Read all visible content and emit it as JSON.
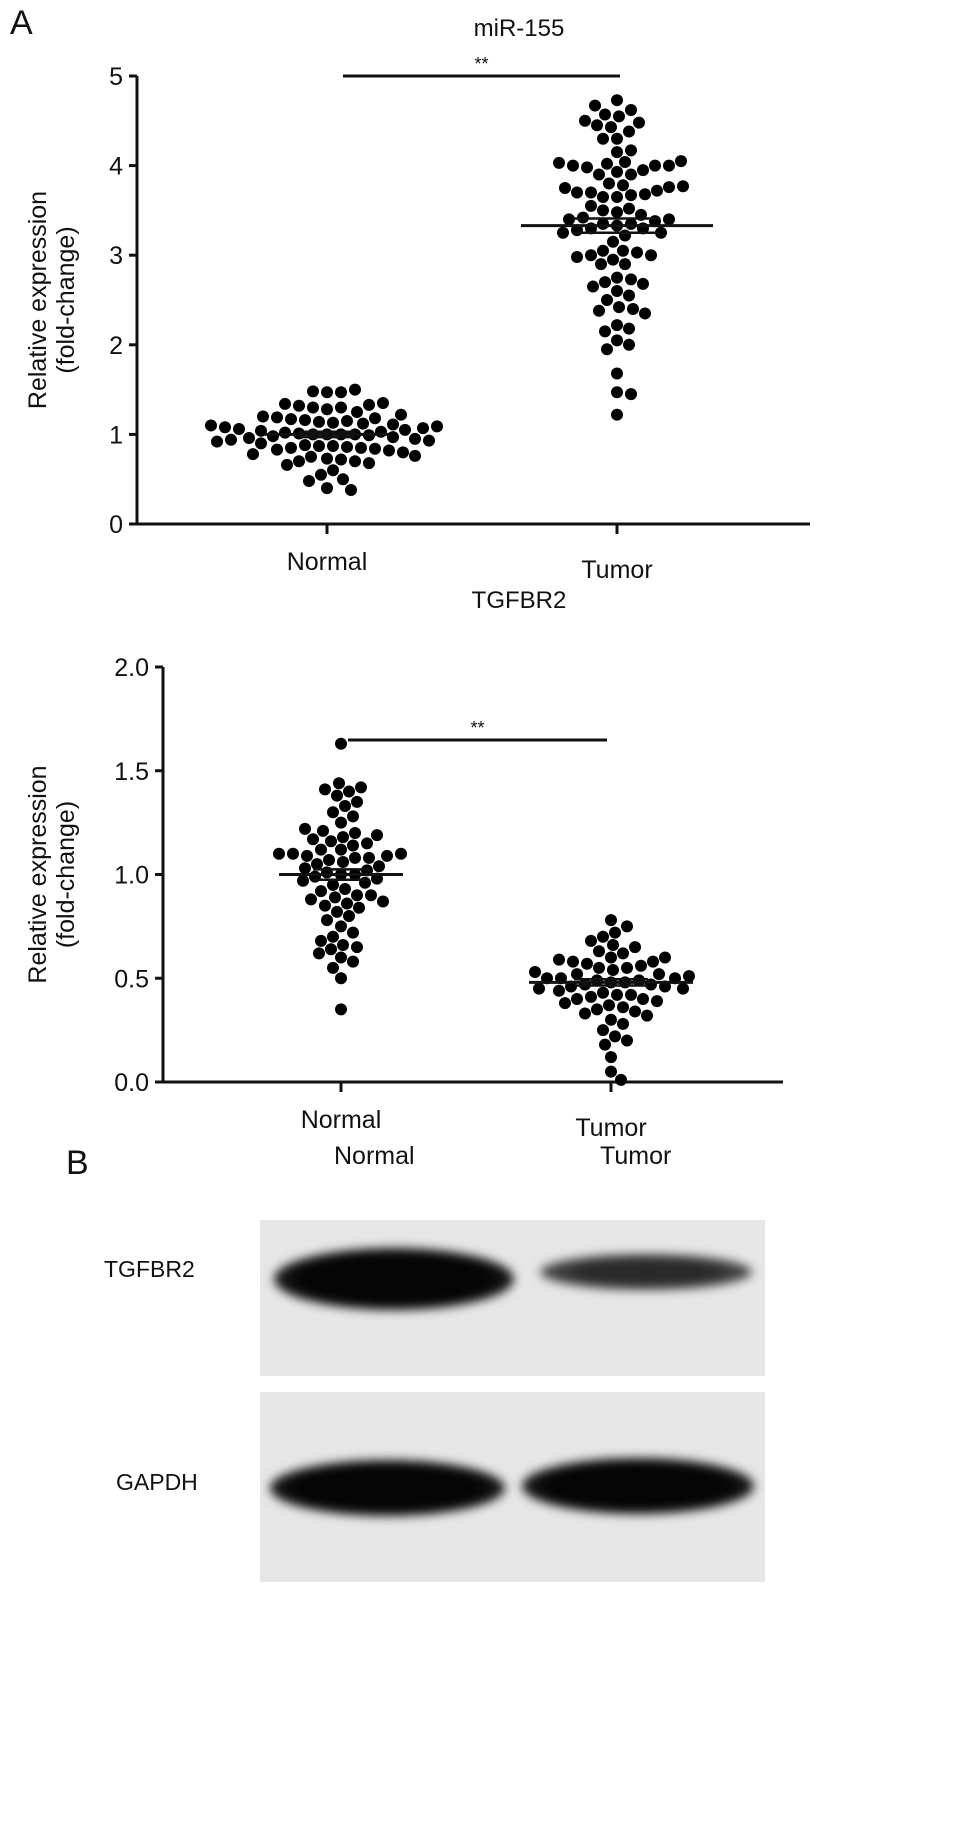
{
  "panel_a_label": "A",
  "panel_b_label": "B",
  "chart_data": [
    {
      "type": "scatter",
      "subtype": "beeswarm",
      "title": "miR-155",
      "xlabel": "",
      "ylabel_line1": "Relative expression",
      "ylabel_line2": "(fold-change)",
      "categories": [
        "Normal",
        "Tumor"
      ],
      "ylim": [
        0,
        5
      ],
      "yticks": [
        0,
        1,
        2,
        3,
        4,
        5
      ],
      "ytick_labels": [
        "0",
        "1",
        "2",
        "3",
        "4",
        "5"
      ],
      "significance": "**",
      "series": [
        {
          "name": "Normal",
          "mean": 1.0,
          "sem": 0.03,
          "values": [
            1.5,
            1.48,
            1.47,
            1.47,
            1.35,
            1.34,
            1.33,
            1.32,
            1.3,
            1.3,
            1.28,
            1.25,
            1.22,
            1.2,
            1.19,
            1.18,
            1.17,
            1.16,
            1.15,
            1.14,
            1.13,
            1.12,
            1.11,
            1.1,
            1.09,
            1.08,
            1.07,
            1.06,
            1.05,
            1.04,
            1.03,
            1.02,
            1.01,
            1.0,
            1.0,
            1.0,
            1.0,
            0.99,
            0.98,
            0.97,
            0.96,
            0.95,
            0.94,
            0.93,
            0.92,
            0.9,
            0.88,
            0.87,
            0.87,
            0.86,
            0.85,
            0.85,
            0.84,
            0.83,
            0.82,
            0.8,
            0.78,
            0.76,
            0.75,
            0.73,
            0.72,
            0.7,
            0.7,
            0.68,
            0.66,
            0.6,
            0.55,
            0.5,
            0.48,
            0.4,
            0.38
          ]
        },
        {
          "name": "Tumor",
          "mean": 3.33,
          "sem": 0.08,
          "values": [
            4.73,
            4.67,
            4.62,
            4.57,
            4.55,
            4.5,
            4.48,
            4.45,
            4.43,
            4.38,
            4.3,
            4.3,
            4.17,
            4.15,
            4.05,
            4.04,
            4.03,
            4.02,
            4.0,
            4.0,
            4.0,
            3.98,
            3.95,
            3.93,
            3.9,
            3.9,
            3.8,
            3.78,
            3.77,
            3.76,
            3.75,
            3.72,
            3.7,
            3.7,
            3.68,
            3.67,
            3.65,
            3.65,
            3.55,
            3.52,
            3.5,
            3.48,
            3.45,
            3.42,
            3.4,
            3.4,
            3.38,
            3.35,
            3.35,
            3.33,
            3.3,
            3.3,
            3.28,
            3.25,
            3.25,
            3.22,
            3.15,
            3.05,
            3.05,
            3.03,
            3.0,
            3.0,
            2.98,
            2.95,
            2.9,
            2.9,
            2.75,
            2.73,
            2.7,
            2.68,
            2.65,
            2.6,
            2.55,
            2.5,
            2.42,
            2.4,
            2.38,
            2.35,
            2.22,
            2.18,
            2.15,
            2.05,
            2.0,
            1.95,
            1.68,
            1.47,
            1.45,
            1.22
          ]
        }
      ]
    },
    {
      "type": "scatter",
      "subtype": "beeswarm",
      "title": "TGFBR2",
      "xlabel": "",
      "ylabel_line1": "Relative expression",
      "ylabel_line2": "(fold-change)",
      "categories": [
        "Normal",
        "Tumor"
      ],
      "ylim": [
        0,
        2
      ],
      "yticks": [
        0,
        0.5,
        1,
        1.5,
        2
      ],
      "ytick_labels": [
        "0.0",
        "0.5",
        "1.0",
        "1.5",
        "2.0"
      ],
      "significance": "**",
      "series": [
        {
          "name": "Normal",
          "mean": 1.0,
          "sem": 0.025,
          "values": [
            1.63,
            1.44,
            1.42,
            1.41,
            1.4,
            1.38,
            1.35,
            1.33,
            1.3,
            1.28,
            1.25,
            1.22,
            1.21,
            1.2,
            1.19,
            1.18,
            1.17,
            1.16,
            1.15,
            1.14,
            1.12,
            1.12,
            1.1,
            1.1,
            1.1,
            1.09,
            1.09,
            1.08,
            1.08,
            1.07,
            1.06,
            1.05,
            1.04,
            1.03,
            1.02,
            1.01,
            1.0,
            1.0,
            0.99,
            0.98,
            0.97,
            0.96,
            0.95,
            0.93,
            0.92,
            0.9,
            0.9,
            0.89,
            0.88,
            0.87,
            0.86,
            0.85,
            0.84,
            0.82,
            0.8,
            0.78,
            0.75,
            0.72,
            0.7,
            0.68,
            0.66,
            0.65,
            0.64,
            0.62,
            0.6,
            0.58,
            0.55,
            0.5,
            0.35
          ]
        },
        {
          "name": "Tumor",
          "mean": 0.48,
          "sem": 0.015,
          "values": [
            0.78,
            0.75,
            0.72,
            0.7,
            0.68,
            0.66,
            0.65,
            0.63,
            0.62,
            0.6,
            0.6,
            0.59,
            0.58,
            0.58,
            0.57,
            0.56,
            0.55,
            0.55,
            0.54,
            0.53,
            0.52,
            0.52,
            0.51,
            0.5,
            0.5,
            0.5,
            0.49,
            0.49,
            0.48,
            0.48,
            0.47,
            0.47,
            0.46,
            0.46,
            0.45,
            0.45,
            0.44,
            0.43,
            0.42,
            0.42,
            0.41,
            0.4,
            0.4,
            0.39,
            0.38,
            0.37,
            0.36,
            0.35,
            0.34,
            0.33,
            0.32,
            0.3,
            0.28,
            0.25,
            0.22,
            0.2,
            0.18,
            0.12,
            0.05,
            0.01
          ]
        }
      ]
    }
  ],
  "western_blot": {
    "lanes": [
      "Normal",
      "Tumor"
    ],
    "rows": [
      {
        "label": "TGFBR2",
        "intensity": [
          1.0,
          0.55
        ]
      },
      {
        "label": "GAPDH",
        "intensity": [
          1.0,
          1.0
        ]
      }
    ]
  }
}
